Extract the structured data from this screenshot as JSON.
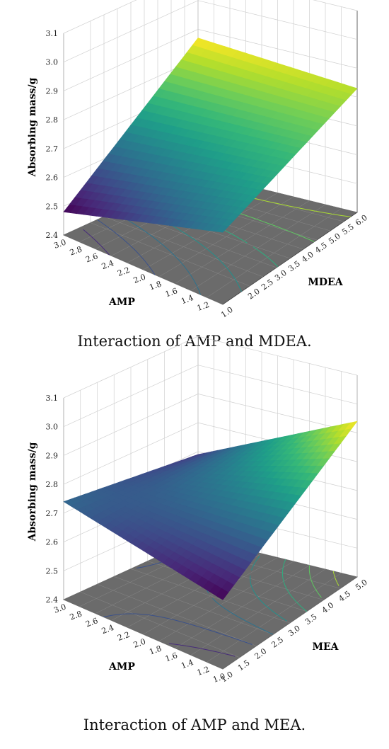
{
  "captions": [
    "Interaction of AMP and MDEA.",
    "Interaction of AMP and MEA."
  ],
  "colors": {
    "floor": "#6b6b6b",
    "grid": "#d0d0d0",
    "colormap": "viridis"
  },
  "chart_data": [
    {
      "type": "surface3d",
      "caption": "Interaction of AMP and MDEA.",
      "xlabel": "AMP",
      "ylabel": "MDEA",
      "zlabel": "Absorbing mass/g",
      "xlim": [
        1.0,
        3.0
      ],
      "ylim": [
        1.0,
        6.0
      ],
      "zlim": [
        2.4,
        3.1
      ],
      "xticks": [
        "1.2",
        "1.4",
        "1.6",
        "1.8",
        "2.0",
        "2.2",
        "2.4",
        "2.6",
        "2.8",
        "3.0"
      ],
      "yticks": [
        "1.0",
        "2.0",
        "2.5",
        "3.0",
        "3.5",
        "4.0",
        "4.5",
        "5.0",
        "5.5",
        "6.0"
      ],
      "zticks": [
        "2.4",
        "2.5",
        "2.6",
        "2.7",
        "2.8",
        "2.9",
        "3.0",
        "3.1"
      ],
      "corners": [
        {
          "x": 3.0,
          "y": 1.0,
          "z": 2.48
        },
        {
          "x": 1.0,
          "y": 1.0,
          "z": 2.65
        },
        {
          "x": 3.0,
          "y": 6.0,
          "z": 2.87
        },
        {
          "x": 1.0,
          "y": 6.0,
          "z": 2.83
        }
      ],
      "contours": true
    },
    {
      "type": "surface3d",
      "caption": "Interaction of AMP and MEA.",
      "xlabel": "AMP",
      "ylabel": "MEA",
      "zlabel": "Absorbing mass/g",
      "xlim": [
        1.0,
        3.0
      ],
      "ylim": [
        1.0,
        5.0
      ],
      "zlim": [
        2.4,
        3.1
      ],
      "xticks": [
        "1.0",
        "1.2",
        "1.4",
        "1.6",
        "1.8",
        "2.0",
        "2.2",
        "2.4",
        "2.6",
        "2.8",
        "3.0"
      ],
      "yticks": [
        "1.0",
        "1.5",
        "2.0",
        "2.5",
        "3.0",
        "3.5",
        "4.0",
        "4.5",
        "5.0"
      ],
      "zticks": [
        "2.4",
        "2.5",
        "2.6",
        "2.7",
        "2.8",
        "2.9",
        "3.0",
        "3.1"
      ],
      "corners": [
        {
          "x": 3.0,
          "y": 1.0,
          "z": 2.74
        },
        {
          "x": 1.0,
          "y": 1.0,
          "z": 2.64
        },
        {
          "x": 3.0,
          "y": 5.0,
          "z": 2.69
        },
        {
          "x": 1.0,
          "y": 5.0,
          "z": 2.94
        }
      ],
      "contours": true
    }
  ]
}
